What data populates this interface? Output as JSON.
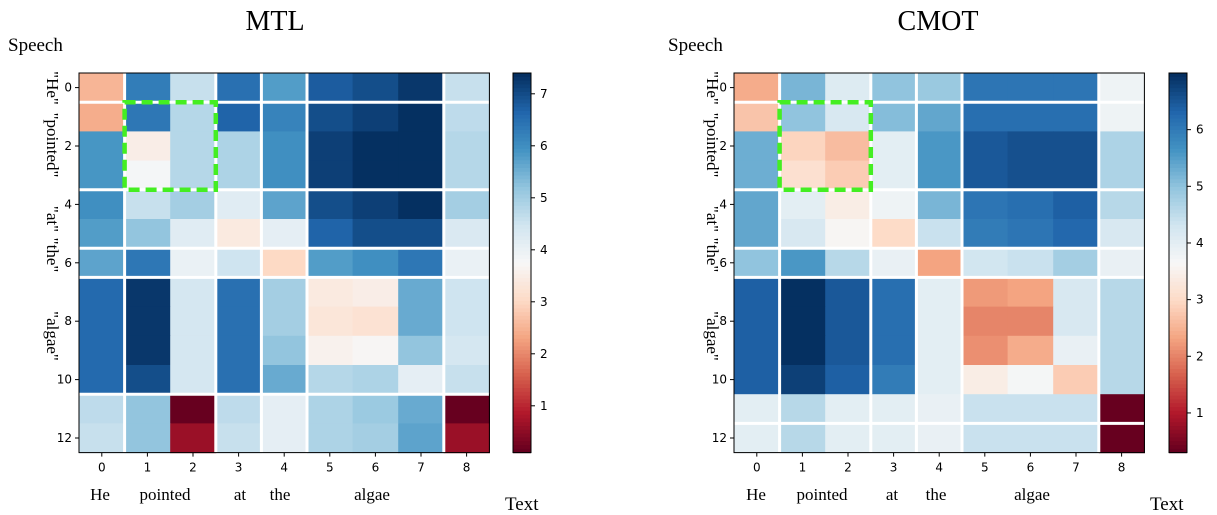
{
  "panels": [
    {
      "title": "MTL",
      "speech_label": "Speech",
      "text_label": "Text",
      "word_labels_x": [
        "He",
        "pointed",
        "at",
        "the",
        "algae"
      ],
      "word_labels_y": [
        "\"He\"",
        "\"pointed\"",
        "\"at\"",
        "\"the\"",
        "\"algae\""
      ],
      "colorbar_ticks": [
        "1",
        "2",
        "3",
        "4",
        "5",
        "6",
        "7"
      ]
    },
    {
      "title": "CMOT",
      "speech_label": "Speech",
      "text_label": "Text",
      "word_labels_x": [
        "He",
        "pointed",
        "at",
        "the",
        "algae"
      ],
      "word_labels_y": [
        "\"He\"",
        "\"pointed\"",
        "\"at\"",
        "\"the\"",
        "\"algae\""
      ],
      "colorbar_ticks": [
        "1",
        "2",
        "3",
        "4",
        "5",
        "6"
      ]
    }
  ],
  "chart_data": [
    {
      "type": "heatmap",
      "title": "MTL",
      "xlabel": "Text",
      "ylabel": "Speech",
      "x_ticks": [
        "0",
        "1",
        "2",
        "3",
        "4",
        "5",
        "6",
        "7",
        "8"
      ],
      "y_ticks": [
        "0",
        "2",
        "4",
        "6",
        "8",
        "10",
        "12"
      ],
      "colormap": "RdBu",
      "vmin": 0.1,
      "vmax": 7.4,
      "values": [
        [
          2.5,
          6.3,
          4.6,
          6.5,
          5.8,
          6.8,
          7.0,
          7.3,
          4.6
        ],
        [
          2.4,
          6.4,
          4.8,
          6.7,
          6.2,
          7.0,
          7.2,
          7.4,
          4.7
        ],
        [
          5.9,
          3.5,
          4.8,
          4.9,
          6.0,
          7.2,
          7.4,
          7.4,
          4.8
        ],
        [
          5.9,
          3.8,
          4.8,
          4.9,
          6.0,
          7.2,
          7.4,
          7.4,
          4.8
        ],
        [
          6.0,
          4.6,
          5.0,
          4.2,
          5.7,
          7.0,
          7.2,
          7.4,
          5.0
        ],
        [
          5.8,
          5.2,
          4.2,
          3.4,
          4.1,
          6.7,
          7.0,
          7.0,
          4.3
        ],
        [
          5.7,
          6.4,
          4.0,
          4.5,
          3.0,
          5.8,
          6.0,
          6.4,
          4.0
        ],
        [
          6.6,
          7.3,
          4.4,
          6.5,
          5.0,
          3.4,
          3.5,
          5.6,
          4.5
        ],
        [
          6.6,
          7.3,
          4.4,
          6.5,
          5.0,
          3.3,
          3.2,
          5.6,
          4.5
        ],
        [
          6.6,
          7.3,
          4.4,
          6.5,
          5.2,
          3.6,
          3.7,
          5.2,
          4.4
        ],
        [
          6.6,
          7.0,
          4.4,
          6.5,
          5.6,
          4.8,
          4.9,
          4.1,
          4.6
        ],
        [
          4.7,
          5.2,
          0.1,
          4.7,
          4.1,
          4.9,
          5.1,
          5.6,
          0.1
        ],
        [
          4.6,
          5.2,
          0.6,
          4.6,
          4.1,
          4.9,
          5.0,
          5.7,
          0.6
        ]
      ],
      "separators": [
        0.5,
        3.5,
        5.5,
        6.5,
        10.5
      ],
      "column_separators": [
        0.5,
        2.5,
        3.5,
        4.5,
        7.5
      ],
      "highlight_box": {
        "rows": [
          1,
          3
        ],
        "cols": [
          1,
          2
        ],
        "color": "#44ee22"
      }
    },
    {
      "type": "heatmap",
      "title": "CMOT",
      "xlabel": "Text",
      "ylabel": "Speech",
      "x_ticks": [
        "0",
        "1",
        "2",
        "3",
        "4",
        "5",
        "6",
        "7",
        "8"
      ],
      "y_ticks": [
        "0",
        "2",
        "4",
        "6",
        "8",
        "10",
        "12"
      ],
      "colormap": "RdBu",
      "vmin": 0.3,
      "vmax": 7.0,
      "values": [
        [
          2.4,
          5.2,
          4.1,
          5.0,
          4.9,
          6.1,
          6.1,
          6.1,
          3.8
        ],
        [
          2.7,
          5.0,
          4.2,
          5.1,
          5.4,
          6.2,
          6.2,
          6.2,
          3.8
        ],
        [
          5.3,
          2.9,
          2.6,
          4.0,
          5.6,
          6.5,
          6.6,
          6.6,
          4.7
        ],
        [
          5.3,
          3.1,
          2.8,
          4.0,
          5.6,
          6.5,
          6.6,
          6.6,
          4.7
        ],
        [
          5.4,
          4.0,
          3.4,
          3.8,
          5.2,
          6.1,
          6.2,
          6.4,
          4.6
        ],
        [
          5.4,
          4.2,
          3.6,
          3.0,
          4.4,
          6.0,
          6.1,
          6.3,
          4.2
        ],
        [
          5.0,
          5.6,
          4.6,
          3.9,
          2.3,
          4.3,
          4.4,
          4.8,
          3.9
        ],
        [
          6.4,
          7.0,
          6.5,
          6.2,
          4.0,
          2.2,
          2.3,
          4.2,
          4.6
        ],
        [
          6.4,
          7.0,
          6.5,
          6.2,
          4.0,
          2.0,
          2.0,
          4.2,
          4.6
        ],
        [
          6.4,
          7.0,
          6.5,
          6.2,
          4.0,
          2.1,
          2.4,
          3.9,
          4.6
        ],
        [
          6.4,
          6.8,
          6.4,
          6.0,
          4.0,
          3.4,
          3.7,
          2.8,
          4.6
        ],
        [
          4.0,
          4.6,
          4.0,
          4.0,
          3.9,
          4.4,
          4.4,
          4.4,
          0.3
        ],
        [
          4.0,
          4.6,
          4.0,
          4.0,
          3.9,
          4.4,
          4.4,
          4.4,
          0.3
        ]
      ],
      "separators": [
        0.5,
        3.5,
        5.5,
        6.5,
        11.5
      ],
      "column_separators": [
        0.5,
        2.5,
        3.5,
        4.5,
        7.5
      ],
      "highlight_box": {
        "rows": [
          1,
          3
        ],
        "cols": [
          1,
          2
        ],
        "color": "#44ee22"
      }
    }
  ]
}
